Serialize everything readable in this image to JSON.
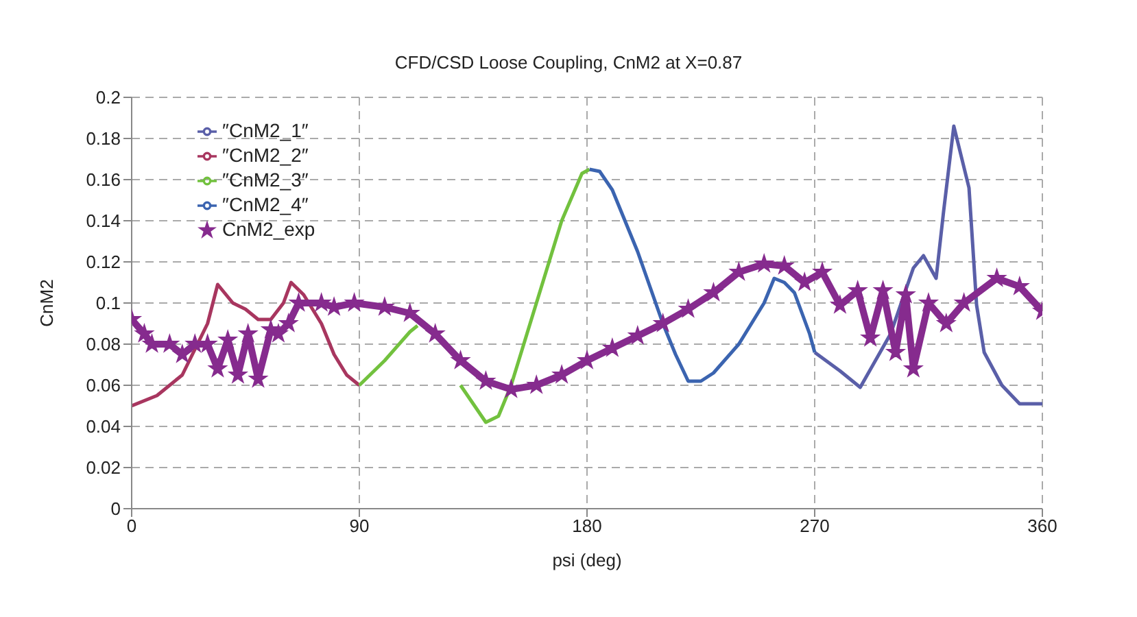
{
  "chart_data": {
    "type": "line",
    "title": "CFD/CSD Loose Coupling, CnM2 at X=0.87",
    "xlabel": "psi (deg)",
    "ylabel": "CnM2",
    "xlim": [
      0,
      360
    ],
    "xticks": [
      0,
      90,
      180,
      270,
      360
    ],
    "ylim": [
      0,
      0.2
    ],
    "yticks": [
      0,
      0.02,
      0.04,
      0.06,
      0.08,
      0.1,
      0.12,
      0.14,
      0.16,
      0.18,
      0.2
    ],
    "grid": true,
    "legend": "top left",
    "line_style": "solid",
    "series": [
      {
        "name": "″CnM2_1″",
        "color": "#5a5fa8",
        "marker": "none",
        "x": [
          270,
          280,
          288,
          300,
          309,
          313,
          318,
          321,
          325,
          331,
          334,
          337,
          344,
          351,
          360
        ],
        "values": [
          0.076,
          0.067,
          0.059,
          0.085,
          0.117,
          0.123,
          0.112,
          0.145,
          0.186,
          0.156,
          0.099,
          0.076,
          0.06,
          0.051,
          0.051
        ]
      },
      {
        "name": "″CnM2_2″",
        "color": "#a8365f",
        "marker": "none",
        "x": [
          0,
          10,
          20,
          30,
          34,
          40,
          45,
          50,
          55,
          60,
          63,
          68,
          75,
          80,
          85,
          90
        ],
        "values": [
          0.05,
          0.055,
          0.065,
          0.09,
          0.109,
          0.1,
          0.097,
          0.092,
          0.092,
          0.1,
          0.11,
          0.104,
          0.09,
          0.075,
          0.065,
          0.06
        ]
      },
      {
        "name": "″CnM2_3″",
        "color": "#72c13e",
        "marker": "none",
        "x": [
          90,
          100,
          110,
          113,
          120,
          130,
          140,
          145,
          150,
          160,
          170,
          178,
          181
        ],
        "values": [
          0.06,
          0.072,
          0.086,
          0.089,
          null,
          0.06,
          0.042,
          0.045,
          0.06,
          0.1,
          0.14,
          0.163,
          0.165
        ]
      },
      {
        "name": "″CnM2_4″",
        "color": "#3b64b0",
        "marker": "none",
        "x": [
          181,
          185,
          190,
          200,
          210,
          215,
          220,
          225,
          230,
          240,
          250,
          254,
          258,
          262,
          268,
          270
        ],
        "values": [
          0.165,
          0.164,
          0.155,
          0.125,
          0.09,
          0.075,
          0.062,
          0.062,
          0.066,
          0.08,
          0.1,
          0.112,
          0.11,
          0.105,
          0.085,
          0.076
        ]
      },
      {
        "name": "CnM2_exp",
        "color": "#862b8e",
        "marker": "star",
        "x": [
          0,
          5,
          8,
          15,
          20,
          25,
          30,
          34,
          38,
          42,
          46,
          50,
          55,
          58,
          62,
          66,
          75,
          80,
          88,
          100,
          110,
          120,
          130,
          140,
          150,
          160,
          170,
          180,
          190,
          200,
          210,
          220,
          230,
          240,
          250,
          258,
          266,
          273,
          280,
          287,
          292,
          297,
          302,
          306,
          309,
          315,
          322,
          329,
          342,
          351,
          360
        ],
        "values": [
          0.092,
          0.085,
          0.08,
          0.08,
          0.075,
          0.08,
          0.08,
          0.068,
          0.082,
          0.065,
          0.085,
          0.063,
          0.087,
          0.085,
          0.09,
          0.1,
          0.1,
          0.098,
          0.1,
          0.098,
          0.095,
          0.085,
          0.072,
          0.062,
          0.058,
          0.06,
          0.065,
          0.072,
          0.078,
          0.084,
          0.09,
          0.097,
          0.105,
          0.115,
          0.119,
          0.118,
          0.11,
          0.115,
          0.099,
          0.106,
          0.083,
          0.106,
          0.076,
          0.104,
          0.068,
          0.1,
          0.09,
          0.1,
          0.112,
          0.108,
          0.096
        ]
      }
    ]
  }
}
